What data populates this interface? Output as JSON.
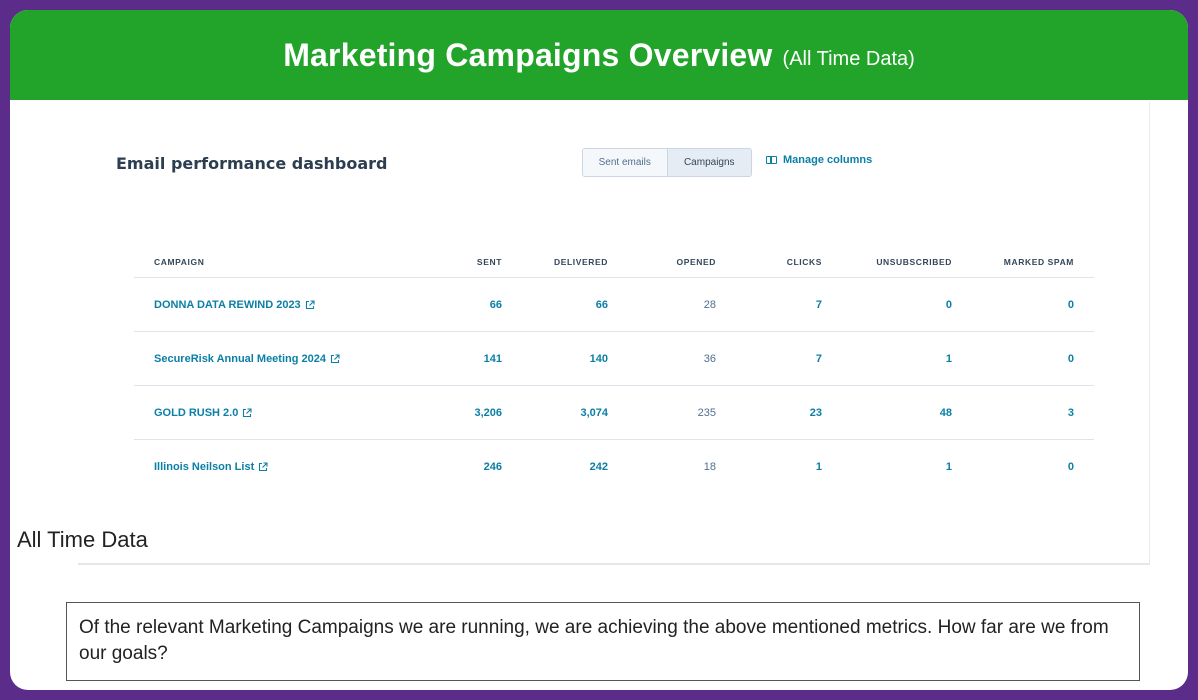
{
  "banner": {
    "title": "Marketing Campaigns Overview",
    "subtitle": "(All Time Data)"
  },
  "dashboard": {
    "title": "Email performance dashboard",
    "toggle": {
      "options": [
        "Sent emails",
        "Campaigns"
      ],
      "selected": "Campaigns"
    },
    "manage_columns_label": "Manage columns"
  },
  "table": {
    "columns": [
      "CAMPAIGN",
      "SENT",
      "DELIVERED",
      "OPENED",
      "CLICKS",
      "UNSUBSCRIBED",
      "MARKED SPAM"
    ],
    "rows": [
      {
        "campaign": "DONNA DATA REWIND 2023",
        "sent": "66",
        "delivered": "66",
        "opened": "28",
        "clicks": "7",
        "unsubscribed": "0",
        "marked_spam": "0"
      },
      {
        "campaign": "SecureRisk Annual Meeting 2024",
        "sent": "141",
        "delivered": "140",
        "opened": "36",
        "clicks": "7",
        "unsubscribed": "1",
        "marked_spam": "0"
      },
      {
        "campaign": "GOLD RUSH 2.0",
        "sent": "3,206",
        "delivered": "3,074",
        "opened": "235",
        "clicks": "23",
        "unsubscribed": "48",
        "marked_spam": "3"
      },
      {
        "campaign": "Illinois Neilson List",
        "sent": "246",
        "delivered": "242",
        "opened": "18",
        "clicks": "1",
        "unsubscribed": "1",
        "marked_spam": "0"
      }
    ]
  },
  "caption": "All Time Data",
  "question": "Of the relevant Marketing Campaigns we are running, we are achieving the above mentioned metrics. How far are we from our goals?",
  "colors": {
    "frame": "#5b2c8a",
    "banner": "#22a42a",
    "link": "#0b7fa6",
    "text_dark": "#2d3e50"
  }
}
